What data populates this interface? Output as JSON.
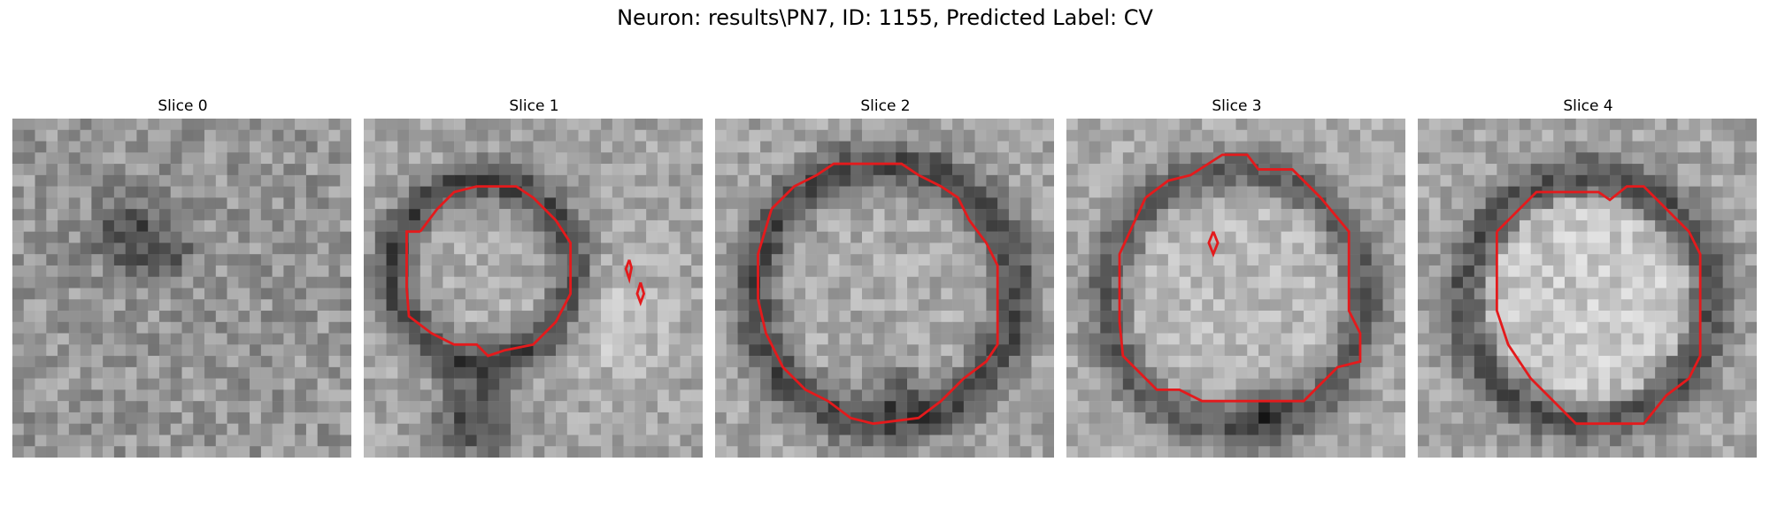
{
  "title": "Neuron: results\\PN7, ID: 1155, Predicted Label: CV",
  "contour_color": "#e41a1c",
  "slices": [
    {
      "label": "Slice 0"
    },
    {
      "label": "Slice 1"
    },
    {
      "label": "Slice 2"
    },
    {
      "label": "Slice 3"
    },
    {
      "label": "Slice 4"
    }
  ]
}
